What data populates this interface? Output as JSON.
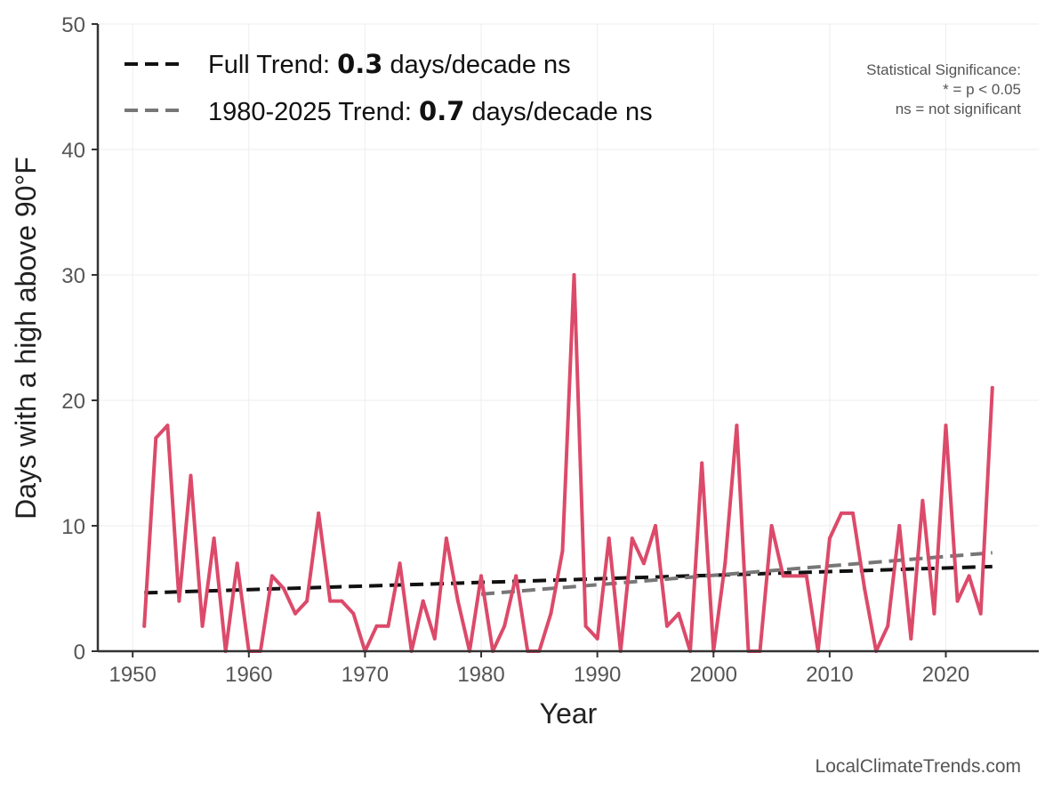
{
  "chart_data": {
    "type": "line",
    "xlabel": "Year",
    "ylabel": "Days with a high above 90°F",
    "xlim": [
      1947,
      2028
    ],
    "ylim": [
      0,
      50
    ],
    "xticks": [
      1950,
      1960,
      1970,
      1980,
      1990,
      2000,
      2010,
      2020
    ],
    "yticks": [
      0,
      10,
      20,
      30,
      40,
      50
    ],
    "grid": true,
    "legend_position": "top-left",
    "colors": {
      "series": "#dc4a6a",
      "full_trend": "#111111",
      "recent_trend": "#777777",
      "axis": "#333333",
      "grid": "#eeeeee"
    },
    "series": [
      {
        "name": "Days with a high above 90°F",
        "x": [
          1951,
          1952,
          1953,
          1954,
          1955,
          1956,
          1957,
          1958,
          1959,
          1960,
          1961,
          1962,
          1963,
          1964,
          1965,
          1966,
          1967,
          1968,
          1969,
          1970,
          1971,
          1972,
          1973,
          1974,
          1975,
          1976,
          1977,
          1978,
          1979,
          1980,
          1981,
          1982,
          1983,
          1984,
          1985,
          1986,
          1987,
          1988,
          1989,
          1990,
          1991,
          1992,
          1993,
          1994,
          1995,
          1996,
          1997,
          1998,
          1999,
          2000,
          2001,
          2002,
          2003,
          2004,
          2005,
          2006,
          2007,
          2008,
          2009,
          2010,
          2011,
          2012,
          2013,
          2014,
          2015,
          2016,
          2017,
          2018,
          2019,
          2020,
          2021,
          2022,
          2023,
          2024
        ],
        "values": [
          2,
          17,
          18,
          4,
          14,
          2,
          9,
          0,
          7,
          0,
          0,
          6,
          5,
          3,
          4,
          11,
          4,
          4,
          3,
          0,
          2,
          2,
          7,
          0,
          4,
          1,
          9,
          4,
          0,
          6,
          0,
          2,
          6,
          0,
          0,
          3,
          8,
          30,
          2,
          1,
          9,
          0,
          9,
          7,
          10,
          2,
          3,
          0,
          15,
          0,
          7,
          18,
          0,
          0,
          10,
          6,
          6,
          6,
          0,
          9,
          11,
          11,
          5,
          0,
          2,
          10,
          1,
          12,
          3,
          18,
          4,
          6,
          3,
          21
        ]
      }
    ],
    "trends": [
      {
        "name": "Full Trend",
        "label_prefix": "Full Trend: ",
        "slope_text": "0.3",
        "label_suffix": " days/decade ns",
        "x": [
          1951,
          2024
        ],
        "y": [
          4.65,
          6.75
        ],
        "style": "dashed"
      },
      {
        "name": "1980-2025 Trend",
        "label_prefix": "1980-2025 Trend: ",
        "slope_text": "0.7",
        "label_suffix": " days/decade ns",
        "x": [
          1980,
          2024
        ],
        "y": [
          4.55,
          7.85
        ],
        "style": "dashed"
      }
    ],
    "significance_note": {
      "title": "Statistical Significance:",
      "line1": "* = p < 0.05",
      "line2": "ns = not significant"
    },
    "source": "LocalClimateTrends.com"
  }
}
